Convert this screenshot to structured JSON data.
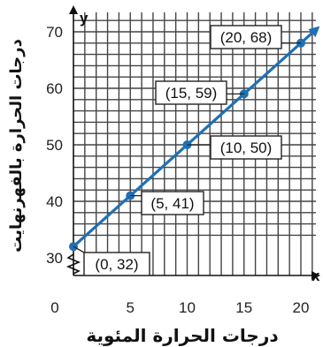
{
  "chart_data": {
    "type": "line",
    "xlabel": "درجات الحرارة المئوية",
    "ylabel": "درجات الحرارة بالفهرنهايت",
    "x_axis_letter": "x",
    "y_axis_letter": "y",
    "xlim": [
      0,
      20
    ],
    "ylim": [
      30,
      70
    ],
    "grid": true,
    "x_ticks": [
      "0",
      "5",
      "10",
      "15",
      "20"
    ],
    "y_ticks": [
      "30",
      "40",
      "50",
      "60",
      "70"
    ],
    "series": [
      {
        "color": "#1f6fb4",
        "x": [
          0,
          5,
          10,
          15,
          20
        ],
        "y": [
          32,
          41,
          50,
          59,
          68
        ]
      }
    ],
    "point_labels": [
      "(0, 32)",
      "(5, 41)",
      "(10, 50)",
      "(15, 59)",
      "(20, 68)"
    ]
  }
}
